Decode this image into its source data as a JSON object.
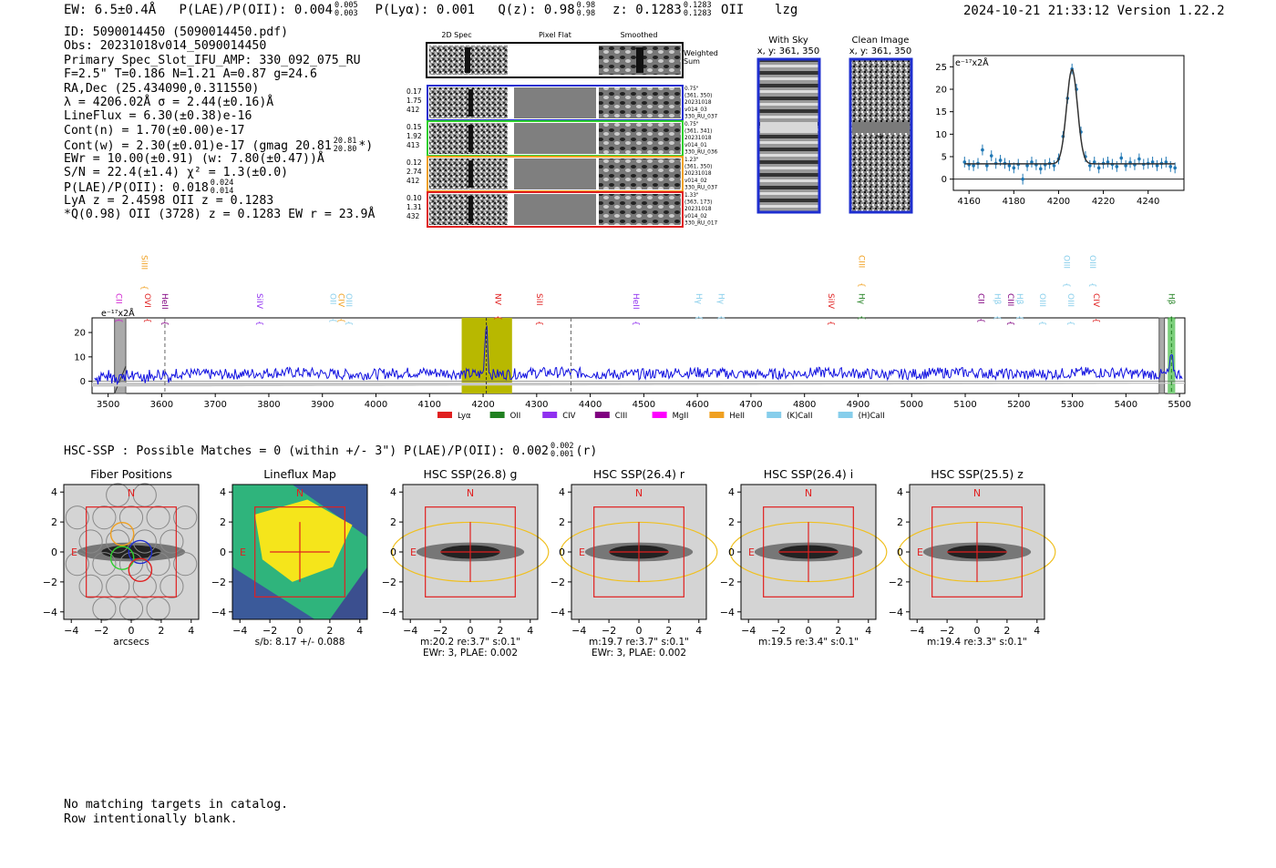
{
  "header": {
    "ew": "EW: 6.5±0.4Å",
    "plae_label": "P(LAE)/P(OII): 0.004",
    "plae_hi": "0.005",
    "plae_lo": "0.003",
    "plya": "P(Lyα): 0.001",
    "qz_label": "Q(z): 0.98",
    "qz_hi": "0.98",
    "qz_lo": "0.98",
    "z_label": "z: 0.1283",
    "z_hi": "0.1283",
    "z_lo": "0.1283",
    "z_line": "OII",
    "tag": "lzg",
    "timestamp": "2024-10-21 21:33:12  Version 1.22.2"
  },
  "info": {
    "id": "ID: 5090014450 (5090014450.pdf)",
    "obs": "Obs: 20231018v014_5090014450",
    "primary": "Primary Spec_Slot_IFU_AMP: 330_092_075_RU",
    "params": "F=2.5\"  T=0.186  N=1.21  A=0.87  g=24.6",
    "radec": "RA,Dec (25.434090,0.311550)",
    "lambda_sigma": "λ = 4206.02Å  σ = 2.44(±0.16)Å",
    "lineflux": "LineFlux = 6.30(±0.38)e-16",
    "contn": "Cont(n) = 1.70(±0.00)e-17",
    "contw_a": "Cont(w) = 2.30(±0.01)e-17 (gmag 20.81",
    "contw_hi": "20.81",
    "contw_lo": "20.80",
    "contw_b": "*)",
    "ewr": "EWr = 10.00(±0.91) (w: 7.80(±0.47))Å",
    "sn": "S/N = 22.4(±1.4)  χ² = 1.3(±0.0)",
    "plae_a": "P(LAE)/P(OII): 0.018",
    "plae_hi": "0.024",
    "plae_lo": "0.014",
    "lya": "LyA z = 2.4598  OII z = 0.1283",
    "qline": "*Q(0.98) OII (3728) z = 0.1283  EW r = 23.9Å"
  },
  "cutouts": {
    "col_headers": [
      "2D Spec",
      "Pixel Flat",
      "Smoothed"
    ],
    "weighted_sum": [
      "Weighted",
      "Sum"
    ],
    "rows": [
      {
        "left": [
          "0.17",
          "1.75",
          "412"
        ],
        "right": [
          "0.75\"",
          "(361, 350)",
          "20231018",
          "v014_03",
          "330_RU_037"
        ],
        "color": "#1f2fd0"
      },
      {
        "left": [
          "0.15",
          "1.92",
          "413"
        ],
        "right": [
          "0.75\"",
          "(361, 341)",
          "20231018",
          "v014_01",
          "330_RU_036"
        ],
        "color": "#2fd02f"
      },
      {
        "left": [
          "0.12",
          "2.74",
          "412"
        ],
        "right": [
          "1.23\"",
          "(361, 350)",
          "20231018",
          "v014_02",
          "330_RU_037"
        ],
        "color": "#f0a020"
      },
      {
        "left": [
          "0.10",
          "1.31",
          "432"
        ],
        "right": [
          "1.33\"",
          "(363, 173)",
          "20231018",
          "v014_02",
          "330_RU_017"
        ],
        "color": "#e02020"
      }
    ],
    "with_sky": [
      "With Sky",
      "x, y: 361, 350"
    ],
    "clean_image": [
      "Clean Image",
      "x, y: 361, 350"
    ]
  },
  "chart_data": [
    {
      "type": "scatter",
      "name": "line-fit",
      "unit_label": "e⁻¹⁷x2Å",
      "xlim": [
        4153,
        4256
      ],
      "ylim": [
        -2.5,
        27.5
      ],
      "xticks": [
        4160,
        4180,
        4200,
        4220,
        4240
      ],
      "yticks": [
        0,
        5,
        10,
        15,
        20,
        25
      ],
      "x": [
        4158,
        4160,
        4162,
        4164,
        4166,
        4168,
        4170,
        4172,
        4174,
        4176,
        4178,
        4180,
        4182,
        4184,
        4186,
        4188,
        4190,
        4192,
        4194,
        4196,
        4198,
        4200,
        4202,
        4204,
        4206,
        4208,
        4210,
        4212,
        4214,
        4216,
        4218,
        4220,
        4222,
        4224,
        4226,
        4228,
        4230,
        4232,
        4234,
        4236,
        4238,
        4240,
        4242,
        4244,
        4246,
        4248,
        4250,
        4252
      ],
      "y": [
        3.8,
        3.2,
        3.0,
        3.5,
        6.5,
        3.0,
        5.2,
        3.5,
        4.2,
        3.5,
        3.0,
        2.5,
        3.3,
        0.0,
        3.0,
        3.8,
        3.2,
        2.3,
        3.2,
        3.5,
        3.0,
        4.5,
        9.5,
        18.0,
        24.5,
        20.0,
        10.5,
        5.0,
        3.0,
        3.8,
        2.5,
        3.5,
        3.8,
        3.3,
        2.8,
        4.7,
        3.0,
        3.7,
        3.2,
        4.5,
        3.3,
        3.5,
        3.8,
        3.0,
        3.5,
        3.8,
        2.8,
        2.5
      ],
      "fit": {
        "center": 4206.02,
        "sigma": 2.44,
        "continuum": 3.4,
        "amplitude": 21.0
      }
    },
    {
      "type": "line",
      "name": "full-spectrum",
      "unit_label": "e⁻¹⁷x2Å",
      "xlim": [
        3470,
        5510
      ],
      "ylim": [
        -5,
        26
      ],
      "xticks": [
        3500,
        3600,
        3700,
        3800,
        3900,
        4000,
        4100,
        4200,
        4300,
        4400,
        4500,
        4600,
        4700,
        4800,
        4900,
        5000,
        5100,
        5200,
        5300,
        5400,
        5500
      ],
      "yticks": [
        0,
        10,
        20
      ],
      "continuum": 3.2,
      "emission": {
        "center": 4206,
        "sigma": 2.4,
        "amplitude": 22
      },
      "highlight": [
        4160,
        4254
      ],
      "lines": [
        {
          "label": "CII",
          "wave": 3520,
          "color": "#d020d0",
          "row": "low"
        },
        {
          "label": "SiIII",
          "wave": 3568,
          "color": "#f0a020",
          "row": "high"
        },
        {
          "label": "OVI",
          "wave": 3574,
          "color": "#e02020",
          "row": "low"
        },
        {
          "label": "HeII",
          "wave": 3606,
          "color": "#800080",
          "row": "low"
        },
        {
          "label": "SiIV",
          "wave": 3783,
          "color": "#9030f0",
          "row": "low"
        },
        {
          "label": "OII",
          "wave": 3920,
          "color": "#87ceeb",
          "row": "low"
        },
        {
          "label": "CIV",
          "wave": 3935,
          "color": "#f0a020",
          "row": "low"
        },
        {
          "label": "OIII",
          "wave": 3950,
          "color": "#87ceeb",
          "row": "low"
        },
        {
          "label": "NV",
          "wave": 4228,
          "color": "#e02020",
          "row": "low"
        },
        {
          "label": "SiII",
          "wave": 4305,
          "color": "#e02020",
          "row": "low"
        },
        {
          "label": "HeII",
          "wave": 4486,
          "color": "#9030f0",
          "row": "low"
        },
        {
          "label": "Hγ",
          "wave": 4603,
          "color": "#87ceeb",
          "row": "low"
        },
        {
          "label": "Hγ",
          "wave": 4645,
          "color": "#87ceeb",
          "row": "low"
        },
        {
          "label": "SiIV",
          "wave": 4850,
          "color": "#e02020",
          "row": "low"
        },
        {
          "label": "CIII",
          "wave": 4907,
          "color": "#f0a020",
          "row": "high"
        },
        {
          "label": "Hγ",
          "wave": 4907,
          "color": "#208020",
          "row": "low"
        },
        {
          "label": "CII",
          "wave": 5130,
          "color": "#800080",
          "row": "low"
        },
        {
          "label": "Hβ",
          "wave": 5160,
          "color": "#87ceeb",
          "row": "low"
        },
        {
          "label": "CIII",
          "wave": 5185,
          "color": "#800080",
          "row": "low"
        },
        {
          "label": "Hβ",
          "wave": 5202,
          "color": "#87ceeb",
          "row": "low"
        },
        {
          "label": "OIII",
          "wave": 5245,
          "color": "#87ceeb",
          "row": "low"
        },
        {
          "label": "OIII",
          "wave": 5290,
          "color": "#87ceeb",
          "row": "high"
        },
        {
          "label": "OIII",
          "wave": 5297,
          "color": "#87ceeb",
          "row": "low"
        },
        {
          "label": "OIII",
          "wave": 5338,
          "color": "#87ceeb",
          "row": "high"
        },
        {
          "label": "CIV",
          "wave": 5345,
          "color": "#e02020",
          "row": "low"
        },
        {
          "label": "Hβ",
          "wave": 5485,
          "color": "#208020",
          "row": "low"
        }
      ],
      "legend": [
        {
          "label": "Lyα",
          "color": "#e02020"
        },
        {
          "label": "OII",
          "color": "#208020"
        },
        {
          "label": "CIV",
          "color": "#9030f0"
        },
        {
          "label": "CIII",
          "color": "#800080"
        },
        {
          "label": "MgII",
          "color": "#ff00ff"
        },
        {
          "label": "HeII",
          "color": "#f0a020"
        },
        {
          "label": "(K)CaII",
          "color": "#87ceeb"
        },
        {
          "label": "(H)CaII",
          "color": "#87ceeb"
        }
      ]
    }
  ],
  "hsc": {
    "title_a": "HSC-SSP : Possible Matches = 0 (within +/- 3\")  P(LAE)/P(OII): 0.002",
    "title_hi": "0.002",
    "title_lo": "0.001",
    "title_b": "(r)",
    "panels": [
      {
        "title": "Fiber Positions",
        "kind": "fiber",
        "caption1": "arcsecs",
        "caption2": ""
      },
      {
        "title": "Lineflux Map",
        "kind": "lineflux",
        "caption1": "s/b: 8.17 +/- 0.088",
        "caption2": ""
      },
      {
        "title": "HSC SSP(26.8) g",
        "kind": "hsc",
        "caption1": "m:20.2  re:3.7\"  s:0.1\"",
        "caption2": "EWr: 3, PLAE: 0.002"
      },
      {
        "title": "HSC SSP(26.4) r",
        "kind": "hsc",
        "caption1": "m:19.7  re:3.7\"  s:0.1\"",
        "caption2": "EWr: 3, PLAE: 0.002"
      },
      {
        "title": "HSC SSP(26.4) i",
        "kind": "hsc",
        "caption1": "m:19.5  re:3.4\"  s:0.1\"",
        "caption2": ""
      },
      {
        "title": "HSC SSP(25.5) z",
        "kind": "hsc",
        "caption1": "m:19.4  re:3.3\"  s:0.1\"",
        "caption2": ""
      }
    ],
    "ticks": [
      "−4",
      "−2",
      "0",
      "2",
      "4"
    ],
    "compass_n": "N",
    "compass_e": "E"
  },
  "catalog_note": [
    "No matching targets in catalog.",
    "Row intentionally blank."
  ]
}
